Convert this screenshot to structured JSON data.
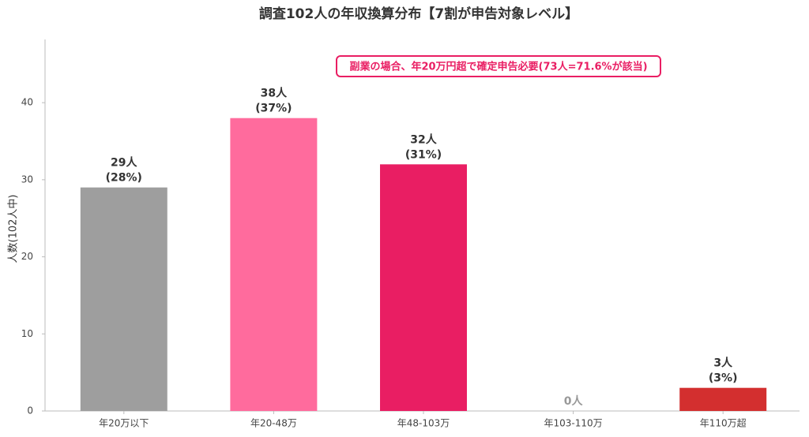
{
  "chart_data": {
    "type": "bar",
    "title": "調査102人の年収換算分布【7割が申告対象レベル】",
    "y_label": "人数(102人中)",
    "annotation": "副業の場合、年20万円超で確定申告必要(73人=71.6%が該当)",
    "categories": [
      "年20万以下",
      "年20-48万",
      "年48-103万",
      "年103-110万",
      "年110万超"
    ],
    "values": [
      29,
      38,
      32,
      0,
      3
    ],
    "value_labels": [
      "29人\n(28%)",
      "38人\n(37%)",
      "32人\n(31%)",
      "0人",
      "3人\n(3%)"
    ],
    "colors": [
      "#9e9e9e",
      "#ff6b9d",
      "#e91e63",
      null,
      "#d32f2f"
    ],
    "ylim": [
      0,
      48
    ],
    "yticks": [
      0,
      10,
      20,
      30,
      40
    ],
    "grid": false
  }
}
